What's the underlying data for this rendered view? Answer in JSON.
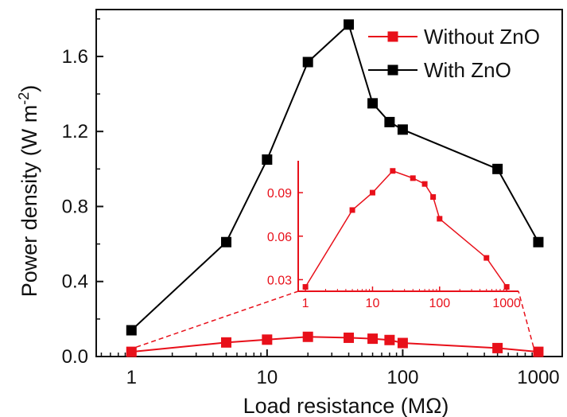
{
  "chart_data": [
    {
      "type": "line",
      "x_scale": "log",
      "xlabel": "Load resistance (MΩ)",
      "ylabel": "Power density (W m",
      "ylabel_sup": "-2",
      "ylabel_close": ")",
      "xlim": [
        0.55,
        1500
      ],
      "ylim": [
        0.0,
        1.85
      ],
      "x_ticks": [
        1,
        10,
        100,
        1000
      ],
      "x_tick_labels": [
        "1",
        "10",
        "100",
        "1000"
      ],
      "y_ticks": [
        0.0,
        0.4,
        0.8,
        1.2,
        1.6
      ],
      "y_tick_labels": [
        "0.0",
        "0.4",
        "0.8",
        "1.2",
        "1.6"
      ],
      "legend_position": "top-right",
      "series": [
        {
          "name": "Without ZnO",
          "color": "#e8101a",
          "marker": "square",
          "x": [
            1,
            5,
            10,
            20,
            40,
            60,
            80,
            100,
            500,
            1000
          ],
          "y": [
            0.025,
            0.075,
            0.09,
            0.105,
            0.1,
            0.095,
            0.088,
            0.072,
            0.045,
            0.025
          ]
        },
        {
          "name": "With ZnO",
          "color": "#000000",
          "marker": "square",
          "x": [
            1,
            5,
            10,
            20,
            40,
            60,
            80,
            100,
            500,
            1000
          ],
          "y": [
            0.14,
            0.61,
            1.05,
            1.57,
            1.77,
            1.35,
            1.25,
            1.21,
            1.0,
            0.61
          ]
        }
      ]
    },
    {
      "type": "line",
      "x_scale": "log",
      "inset": true,
      "color": "#e8101a",
      "xlim": [
        0.78,
        1500
      ],
      "ylim": [
        0.022,
        0.112
      ],
      "x_ticks": [
        1,
        10,
        100,
        1000
      ],
      "x_tick_labels": [
        "1",
        "10",
        "100",
        "1000"
      ],
      "y_ticks": [
        0.03,
        0.06,
        0.09
      ],
      "y_tick_labels": [
        "0.03",
        "0.06",
        "0.09"
      ],
      "series": [
        {
          "x": [
            1,
            5,
            10,
            20,
            40,
            60,
            80,
            100,
            500,
            1000
          ],
          "y": [
            0.025,
            0.078,
            0.09,
            0.105,
            0.1,
            0.096,
            0.087,
            0.072,
            0.045,
            0.025
          ]
        }
      ]
    }
  ]
}
